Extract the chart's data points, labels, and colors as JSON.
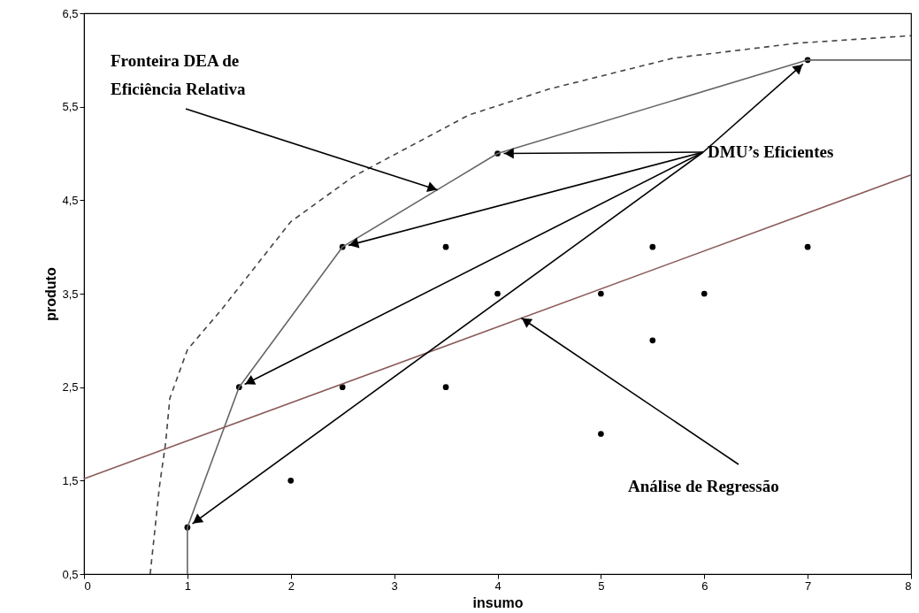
{
  "chart_data": {
    "type": "scatter",
    "xlabel": "insumo",
    "ylabel": "produto",
    "xlim": [
      0,
      8
    ],
    "ylim": [
      0.5,
      6.5
    ],
    "xticks": [
      0,
      1,
      2,
      3,
      4,
      5,
      6,
      7,
      8
    ],
    "yticks": [
      {
        "value": 0.5,
        "label": "0,5"
      },
      {
        "value": 1.5,
        "label": "1,5"
      },
      {
        "value": 2.5,
        "label": "2,5"
      },
      {
        "value": 3.5,
        "label": "3,5"
      },
      {
        "value": 4.5,
        "label": "4,5"
      },
      {
        "value": 5.5,
        "label": "5,5"
      },
      {
        "value": 6.5,
        "label": "6,5"
      }
    ],
    "grid": false,
    "series": [
      {
        "color": "#000000",
        "marker": "circle",
        "x": [
          1,
          1.5,
          2,
          2.5,
          2.5,
          3.5,
          3.5,
          4,
          4,
          5,
          5,
          5.5,
          5.5,
          6,
          7,
          7
        ],
        "values": [
          1,
          2.5,
          1.5,
          4,
          2.5,
          4,
          2.5,
          5,
          3.5,
          3.5,
          2,
          4,
          3,
          3.5,
          4,
          6
        ]
      },
      {
        "type": "line",
        "color": "#666666",
        "line_style": "solid",
        "marker": "none",
        "x": [
          1,
          1,
          1.5,
          2.5,
          4,
          7,
          8
        ],
        "values": [
          0.5,
          1,
          2.5,
          4,
          5,
          6,
          6
        ]
      },
      {
        "type": "line",
        "color": "#8b5a5a",
        "line_style": "solid",
        "marker": "none",
        "x": [
          0,
          8
        ],
        "values": [
          1.52,
          4.77
        ]
      },
      {
        "type": "line",
        "color": "#444444",
        "line_style": "dashed",
        "marker": "none",
        "x": [
          0.64,
          0.73,
          0.79,
          0.83,
          1.0,
          1.33,
          2.0,
          2.6,
          3.72,
          4.5,
          5.7,
          6.9,
          8
        ],
        "values": [
          0.5,
          1.44,
          1.91,
          2.38,
          2.9,
          3.33,
          4.27,
          4.75,
          5.41,
          5.69,
          6.02,
          6.18,
          6.26
        ]
      }
    ],
    "annotations": [
      {
        "text": "Fronteira DEA de\nEficiência Relativa",
        "x": 3.42,
        "y": 4.61
      },
      {
        "text": "DMU’s Eficientes",
        "x": 4,
        "y": 5
      },
      {
        "text": "Análise de Regressão",
        "x": 4.23,
        "y": 3.24
      }
    ]
  }
}
